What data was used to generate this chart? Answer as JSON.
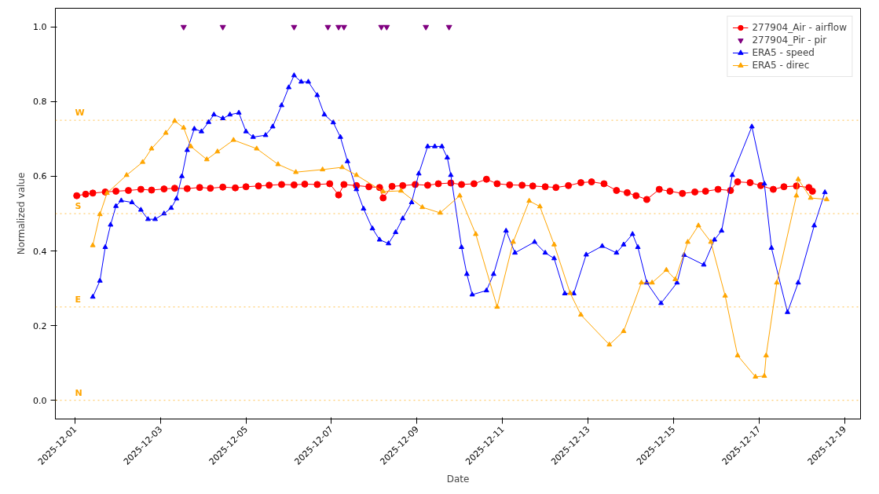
{
  "chart_data": {
    "type": "line",
    "xlabel": "Date",
    "ylabel": "Normalized value",
    "xlim": [
      "2025-11-30T13:00",
      "2025-12-19T09:00"
    ],
    "ylim": [
      -0.05,
      1.05
    ],
    "xticks": [
      "2025-12-01",
      "2025-12-03",
      "2025-12-05",
      "2025-12-07",
      "2025-12-09",
      "2025-12-11",
      "2025-12-13",
      "2025-12-15",
      "2025-12-17",
      "2025-12-19"
    ],
    "yticks": [
      {
        "value": 0,
        "label": "0.0"
      },
      {
        "value": 0.2,
        "label": "0.2"
      },
      {
        "value": 0.4,
        "label": "0.4"
      },
      {
        "value": 0.6,
        "label": "0.6"
      },
      {
        "value": 0.8,
        "label": "0.8"
      },
      {
        "value": 1,
        "label": "1.0"
      }
    ],
    "grid": false,
    "legend": "top right",
    "line_style": "solid",
    "ref_lines": [
      {
        "axis": "y",
        "value": 0,
        "label": "N",
        "color": "#ffa500",
        "line_style": "dotted"
      },
      {
        "axis": "y",
        "value": 0.25,
        "label": "E",
        "color": "#ffa500",
        "line_style": "dotted"
      },
      {
        "axis": "y",
        "value": 0.5,
        "label": "S",
        "color": "#ffa500",
        "line_style": "dotted"
      },
      {
        "axis": "y",
        "value": 0.75,
        "label": "W",
        "color": "#ffa500",
        "line_style": "dotted"
      }
    ],
    "series": [
      {
        "name": "277904_Air - airflow",
        "color": "#ff0000",
        "marker": "circle",
        "x": [
          "2025-12-01T01:00",
          "2025-12-01T06:00",
          "2025-12-01T10:00",
          "2025-12-01T17:00",
          "2025-12-01T23:00",
          "2025-12-02T06:00",
          "2025-12-02T13:00",
          "2025-12-02T19:00",
          "2025-12-03T02:00",
          "2025-12-03T08:00",
          "2025-12-03T15:00",
          "2025-12-03T22:00",
          "2025-12-04T04:00",
          "2025-12-04T11:00",
          "2025-12-04T18:00",
          "2025-12-05T00:00",
          "2025-12-05T07:00",
          "2025-12-05T13:00",
          "2025-12-05T20:00",
          "2025-12-06T03:00",
          "2025-12-06T09:00",
          "2025-12-06T16:00",
          "2025-12-06T23:00",
          "2025-12-07T04:00",
          "2025-12-07T07:00",
          "2025-12-07T14:00",
          "2025-12-07T21:00",
          "2025-12-08T03:00",
          "2025-12-08T05:00",
          "2025-12-08T10:00",
          "2025-12-08T16:00",
          "2025-12-08T23:00",
          "2025-12-09T06:00",
          "2025-12-09T12:00",
          "2025-12-09T19:00",
          "2025-12-10T01:00",
          "2025-12-10T08:00",
          "2025-12-10T15:00",
          "2025-12-10T21:00",
          "2025-12-11T04:00",
          "2025-12-11T11:00",
          "2025-12-11T17:00",
          "2025-12-12T00:00",
          "2025-12-12T06:00",
          "2025-12-12T13:00",
          "2025-12-12T20:00",
          "2025-12-13T02:00",
          "2025-12-13T09:00",
          "2025-12-13T16:00",
          "2025-12-13T22:00",
          "2025-12-14T03:00",
          "2025-12-14T09:00",
          "2025-12-14T16:00",
          "2025-12-14T22:00",
          "2025-12-15T05:00",
          "2025-12-15T12:00",
          "2025-12-15T18:00",
          "2025-12-16T01:00",
          "2025-12-16T08:00",
          "2025-12-16T12:00",
          "2025-12-16T19:00",
          "2025-12-17T01:00",
          "2025-12-17T08:00",
          "2025-12-17T14:00",
          "2025-12-17T21:00",
          "2025-12-18T04:00",
          "2025-12-18T06:00"
        ],
        "values": [
          0.548,
          0.552,
          0.555,
          0.558,
          0.56,
          0.562,
          0.565,
          0.563,
          0.566,
          0.568,
          0.567,
          0.57,
          0.568,
          0.571,
          0.569,
          0.572,
          0.574,
          0.576,
          0.578,
          0.577,
          0.579,
          0.578,
          0.58,
          0.55,
          0.578,
          0.575,
          0.572,
          0.57,
          0.542,
          0.573,
          0.575,
          0.578,
          0.576,
          0.58,
          0.582,
          0.578,
          0.58,
          0.592,
          0.58,
          0.577,
          0.576,
          0.574,
          0.572,
          0.57,
          0.575,
          0.583,
          0.585,
          0.58,
          0.562,
          0.556,
          0.548,
          0.538,
          0.565,
          0.56,
          0.554,
          0.558,
          0.56,
          0.565,
          0.562,
          0.585,
          0.583,
          0.575,
          0.565,
          0.572,
          0.574,
          0.57,
          0.56
        ]
      },
      {
        "name": "277904_Pir - pir",
        "color": "#800080",
        "type": "scatter",
        "marker": "triangle_down",
        "x": [
          "2025-12-03T13:00",
          "2025-12-04T11:00",
          "2025-12-06T03:00",
          "2025-12-06T22:00",
          "2025-12-07T04:00",
          "2025-12-07T07:00",
          "2025-12-08T04:00",
          "2025-12-08T07:00",
          "2025-12-09T05:00",
          "2025-12-09T18:00"
        ],
        "values": [
          1,
          1,
          1,
          1,
          1,
          1,
          1,
          1,
          1,
          1
        ]
      },
      {
        "name": "ERA5 - speed",
        "color": "#0000ff",
        "marker": "triangle",
        "x": [
          "2025-12-01T10:00",
          "2025-12-01T14:00",
          "2025-12-01T17:00",
          "2025-12-01T20:00",
          "2025-12-01T23:00",
          "2025-12-02T02:00",
          "2025-12-02T08:00",
          "2025-12-02T13:00",
          "2025-12-02T17:00",
          "2025-12-02T21:00",
          "2025-12-03T02:00",
          "2025-12-03T06:00",
          "2025-12-03T09:00",
          "2025-12-03T12:00",
          "2025-12-03T15:00",
          "2025-12-03T19:00",
          "2025-12-03T23:00",
          "2025-12-04T03:00",
          "2025-12-04T06:00",
          "2025-12-04T11:00",
          "2025-12-04T15:00",
          "2025-12-04T20:00",
          "2025-12-05T00:00",
          "2025-12-05T04:00",
          "2025-12-05T11:00",
          "2025-12-05T15:00",
          "2025-12-05T20:00",
          "2025-12-06T00:00",
          "2025-12-06T03:00",
          "2025-12-06T07:00",
          "2025-12-06T11:00",
          "2025-12-06T16:00",
          "2025-12-06T20:00",
          "2025-12-07T01:00",
          "2025-12-07T05:00",
          "2025-12-07T09:00",
          "2025-12-07T14:00",
          "2025-12-07T18:00",
          "2025-12-07T23:00",
          "2025-12-08T03:00",
          "2025-12-08T08:00",
          "2025-12-08T12:00",
          "2025-12-08T16:00",
          "2025-12-08T21:00",
          "2025-12-09T01:00",
          "2025-12-09T06:00",
          "2025-12-09T10:00",
          "2025-12-09T14:00",
          "2025-12-09T17:00",
          "2025-12-09T19:00",
          "2025-12-10T01:00",
          "2025-12-10T04:00",
          "2025-12-10T07:00",
          "2025-12-10T15:00",
          "2025-12-10T19:00",
          "2025-12-11T02:00",
          "2025-12-11T07:00",
          "2025-12-11T18:00",
          "2025-12-12T00:00",
          "2025-12-12T05:00",
          "2025-12-12T11:00",
          "2025-12-12T16:00",
          "2025-12-12T23:00",
          "2025-12-13T08:00",
          "2025-12-13T16:00",
          "2025-12-13T20:00",
          "2025-12-14T01:00",
          "2025-12-14T04:00",
          "2025-12-14T09:00",
          "2025-12-14T17:00",
          "2025-12-15T02:00",
          "2025-12-15T06:00",
          "2025-12-15T17:00",
          "2025-12-15T23:00",
          "2025-12-16T03:00",
          "2025-12-16T09:00",
          "2025-12-16T20:00",
          "2025-12-17T03:00",
          "2025-12-17T07:00",
          "2025-12-17T16:00",
          "2025-12-17T22:00",
          "2025-12-18T07:00",
          "2025-12-18T13:00"
        ],
        "values": [
          0.277,
          0.32,
          0.41,
          0.47,
          0.52,
          0.535,
          0.53,
          0.51,
          0.485,
          0.485,
          0.5,
          0.515,
          0.54,
          0.6,
          0.67,
          0.727,
          0.72,
          0.745,
          0.765,
          0.755,
          0.765,
          0.77,
          0.72,
          0.705,
          0.71,
          0.733,
          0.79,
          0.838,
          0.87,
          0.853,
          0.853,
          0.817,
          0.765,
          0.744,
          0.705,
          0.64,
          0.565,
          0.513,
          0.46,
          0.43,
          0.42,
          0.45,
          0.487,
          0.53,
          0.607,
          0.68,
          0.68,
          0.68,
          0.65,
          0.603,
          0.41,
          0.338,
          0.283,
          0.294,
          0.338,
          0.454,
          0.395,
          0.424,
          0.395,
          0.38,
          0.286,
          0.286,
          0.39,
          0.413,
          0.395,
          0.417,
          0.445,
          0.41,
          0.315,
          0.26,
          0.315,
          0.389,
          0.363,
          0.43,
          0.454,
          0.603,
          0.733,
          0.58,
          0.408,
          0.236,
          0.315,
          0.468,
          0.557
        ]
      },
      {
        "name": "ERA5 - direc",
        "color": "#ffa500",
        "marker": "triangle",
        "x": [
          "2025-12-01T10:00",
          "2025-12-01T14:00",
          "2025-12-01T18:00",
          "2025-12-02T05:00",
          "2025-12-02T14:00",
          "2025-12-02T19:00",
          "2025-12-03T03:00",
          "2025-12-03T08:00",
          "2025-12-03T13:00",
          "2025-12-03T17:00",
          "2025-12-04T02:00",
          "2025-12-04T08:00",
          "2025-12-04T17:00",
          "2025-12-05T06:00",
          "2025-12-05T18:00",
          "2025-12-06T04:00",
          "2025-12-06T19:00",
          "2025-12-07T06:00",
          "2025-12-07T14:00",
          "2025-12-08T05:00",
          "2025-12-08T15:00",
          "2025-12-09T03:00",
          "2025-12-09T13:00",
          "2025-12-10T00:00",
          "2025-12-10T09:00",
          "2025-12-10T21:00",
          "2025-12-11T06:00",
          "2025-12-11T15:00",
          "2025-12-11T21:00",
          "2025-12-12T05:00",
          "2025-12-12T14:00",
          "2025-12-12T20:00",
          "2025-12-13T12:00",
          "2025-12-13T20:00",
          "2025-12-14T06:00",
          "2025-12-14T12:00",
          "2025-12-14T20:00",
          "2025-12-15T01:00",
          "2025-12-15T08:00",
          "2025-12-15T14:00",
          "2025-12-15T21:00",
          "2025-12-16T05:00",
          "2025-12-16T12:00",
          "2025-12-16T22:00",
          "2025-12-17T03:00",
          "2025-12-17T04:00",
          "2025-12-17T10:00",
          "2025-12-17T21:00",
          "2025-12-17T22:00",
          "2025-12-18T05:00",
          "2025-12-18T14:00"
        ],
        "values": [
          0.415,
          0.498,
          0.555,
          0.603,
          0.638,
          0.674,
          0.716,
          0.748,
          0.73,
          0.68,
          0.645,
          0.666,
          0.697,
          0.674,
          0.632,
          0.611,
          0.618,
          0.624,
          0.603,
          0.559,
          0.561,
          0.517,
          0.502,
          0.548,
          0.445,
          0.25,
          0.424,
          0.534,
          0.519,
          0.417,
          0.287,
          0.229,
          0.149,
          0.185,
          0.315,
          0.315,
          0.349,
          0.324,
          0.424,
          0.468,
          0.424,
          0.28,
          0.12,
          0.063,
          0.065,
          0.12,
          0.315,
          0.548,
          0.592,
          0.542,
          0.538
        ]
      }
    ]
  }
}
